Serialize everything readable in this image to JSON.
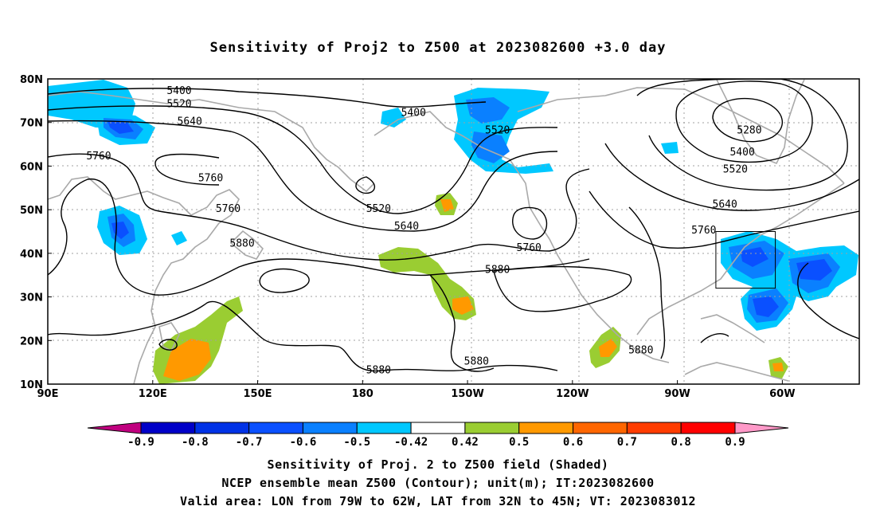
{
  "title": "Sensitivity of Proj2 to Z500 at 2023082600 +3.0 day",
  "map": {
    "lat_range": [
      10,
      80
    ],
    "lon_range_east": [
      90,
      322
    ],
    "lat_ticks": [
      "80N",
      "70N",
      "60N",
      "50N",
      "40N",
      "30N",
      "20N",
      "10N"
    ],
    "lon_ticks": [
      "90E",
      "120E",
      "150E",
      "180",
      "150W",
      "120W",
      "90W",
      "60W"
    ],
    "valid_box": {
      "lon_w": -79,
      "lon_e": -62,
      "lat_s": 32,
      "lat_n": 45
    },
    "contour_labels": [
      {
        "text": "5400",
        "lon": 124,
        "lat": 76.5
      },
      {
        "text": "5520",
        "lon": 124,
        "lat": 73.5
      },
      {
        "text": "5640",
        "lon": 127,
        "lat": 69.5
      },
      {
        "text": "5760",
        "lon": 101,
        "lat": 61.5
      },
      {
        "text": "5760",
        "lon": 133,
        "lat": 56.5
      },
      {
        "text": "5760",
        "lon": 138,
        "lat": 49.5
      },
      {
        "text": "5880",
        "lon": 142,
        "lat": 41.5
      },
      {
        "text": "5400",
        "lon": 191,
        "lat": 71.5
      },
      {
        "text": "5520",
        "lon": 215,
        "lat": 67.5
      },
      {
        "text": "5520",
        "lon": 181,
        "lat": 49.5
      },
      {
        "text": "5640",
        "lon": 189,
        "lat": 45.5
      },
      {
        "text": "5760",
        "lon": 224,
        "lat": 40.5
      },
      {
        "text": "5880",
        "lon": 215,
        "lat": 35.5
      },
      {
        "text": "5880",
        "lon": 181,
        "lat": 12.5
      },
      {
        "text": "5880",
        "lon": 209,
        "lat": 14.5
      },
      {
        "text": "5880",
        "lon": 256,
        "lat": 17.0
      },
      {
        "text": "5760",
        "lon": 274,
        "lat": 44.5
      },
      {
        "text": "5640",
        "lon": 280,
        "lat": 50.5
      },
      {
        "text": "5520",
        "lon": 283,
        "lat": 58.5
      },
      {
        "text": "5400",
        "lon": 285,
        "lat": 62.5
      },
      {
        "text": "5280",
        "lon": 287,
        "lat": 67.5
      }
    ],
    "colors": {
      "land": "#a9a9a9",
      "grid": "#a0a0a0",
      "contour": "#000000",
      "box": "#000000"
    }
  },
  "colorbar": {
    "labels": [
      "-0.9",
      "-0.8",
      "-0.7",
      "-0.6",
      "-0.5",
      "-0.42",
      "0.42",
      "0.5",
      "0.6",
      "0.7",
      "0.8",
      "0.9"
    ],
    "colors": [
      "#0000c8",
      "#0032e6",
      "#0a50ff",
      "#0a80ff",
      "#00c8ff",
      "#ffffff",
      "#9acd32",
      "#ff9900",
      "#ff6600",
      "#ff3c00",
      "#ff0000"
    ],
    "low_end_color": "#c0007f",
    "high_end_color": "#ff99c8"
  },
  "captions": {
    "line1": "Sensitivity of Proj. 2 to Z500 field (Shaded)",
    "line2": "NCEP ensemble mean Z500 (Contour); unit(m); IT:2023082600",
    "line3": "Valid area: LON from 79W to 62W, LAT from 32N to 45N; VT: 2023083012"
  }
}
